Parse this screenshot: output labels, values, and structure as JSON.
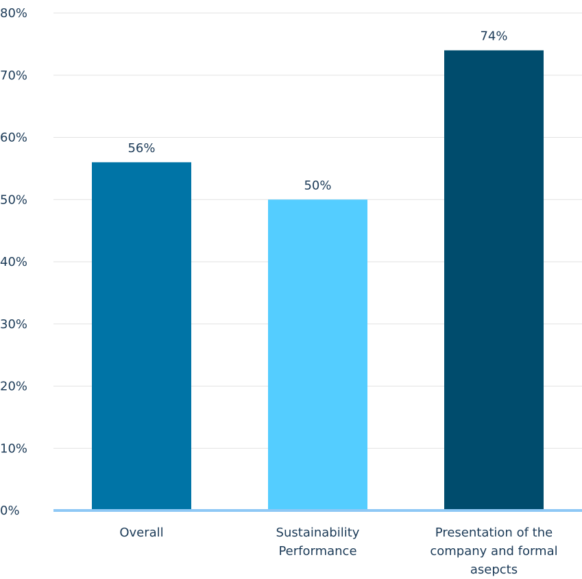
{
  "chart_data": {
    "type": "bar",
    "title": "",
    "xlabel": "",
    "ylabel": "",
    "ylim": [
      0,
      80
    ],
    "yticks": [
      0,
      10,
      20,
      30,
      40,
      50,
      60,
      70,
      80
    ],
    "ytick_labels": [
      "0%",
      "10%",
      "20%",
      "30%",
      "40%",
      "50%",
      "60%",
      "70%",
      "80%"
    ],
    "grid": true,
    "legend": "none",
    "categories": [
      [
        "Overall"
      ],
      [
        "Sustainability",
        "Performance"
      ],
      [
        "Presentation of the",
        "company and formal",
        "asepcts"
      ]
    ],
    "values": [
      56,
      50,
      74
    ],
    "value_labels": [
      "56%",
      "50%",
      "74%"
    ],
    "bar_colors": [
      "#0074a6",
      "#54cdff",
      "#004c6d"
    ],
    "axis_color": "#8ec8f5",
    "grid_color": "#e2e2e2",
    "text_color": "#1b3a57"
  }
}
